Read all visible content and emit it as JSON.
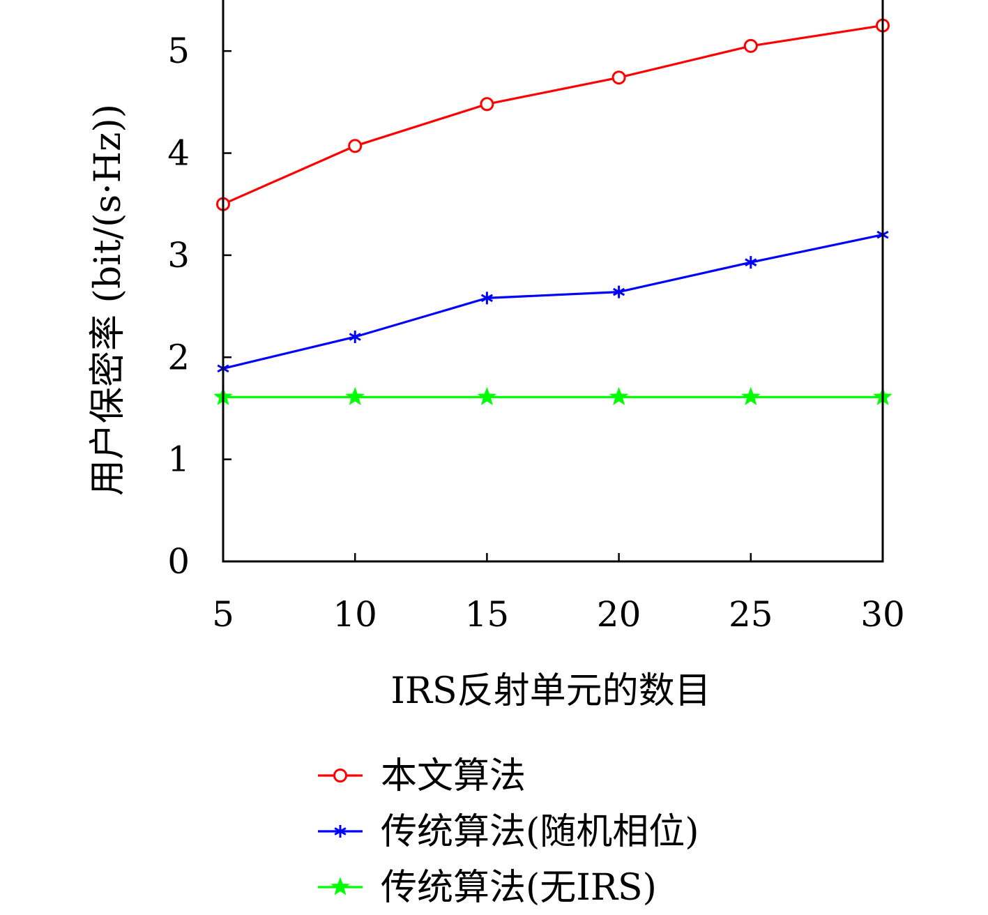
{
  "chart_data": {
    "type": "line",
    "title": "",
    "xlabel": "IRS反射单元的数目",
    "ylabel": "用户保密率 (bit/(s·Hz))",
    "x": [
      5,
      10,
      15,
      20,
      25,
      30
    ],
    "xticks": [
      "5",
      "10",
      "15",
      "20",
      "25",
      "30"
    ],
    "yticks": [
      "0",
      "1",
      "2",
      "3",
      "4",
      "5"
    ],
    "xlim": [
      5,
      30
    ],
    "ylim": [
      0,
      5.5
    ],
    "grid": false,
    "legend_position": "bottom-center",
    "series": [
      {
        "name": "本文算法",
        "values": [
          3.5,
          4.07,
          4.48,
          4.74,
          5.05,
          5.25
        ],
        "color": "#ff0000",
        "marker": "circle"
      },
      {
        "name": "传统算法(随机相位)",
        "values": [
          1.89,
          2.2,
          2.58,
          2.64,
          2.93,
          3.2
        ],
        "color": "#0000ff",
        "marker": "asterisk"
      },
      {
        "name": "传统算法(无IRS)",
        "values": [
          1.61,
          1.61,
          1.61,
          1.61,
          1.61,
          1.61
        ],
        "color": "#00ff00",
        "marker": "star"
      }
    ]
  }
}
